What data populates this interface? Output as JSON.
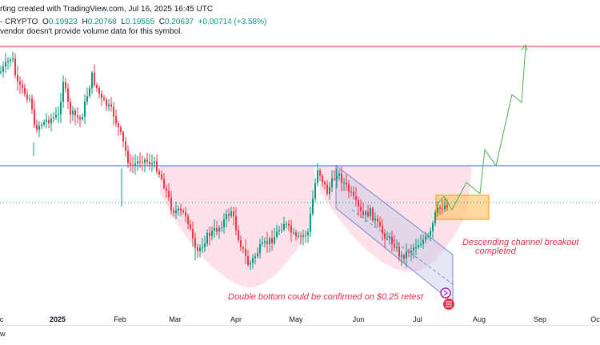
{
  "header": {
    "title_fragment": "rting created with TradingView.com, Jul 16, 2025 16:45 UTC",
    "symbol_fragment": "- CRYPTO",
    "ohlc": [
      {
        "label": "O",
        "value": "0.19923"
      },
      {
        "label": "H",
        "value": "0.20768"
      },
      {
        "label": "L",
        "value": "0.19555"
      },
      {
        "label": "C",
        "value": "0.20637"
      }
    ],
    "change": "+0.00714 (+3.58%)",
    "notice": "vendor doesn't provide volume data for this symbol."
  },
  "x_axis": {
    "labels": [
      {
        "text": "c",
        "bold": false
      },
      {
        "text": "2025",
        "bold": true
      },
      {
        "text": "Feb",
        "bold": false
      },
      {
        "text": "Mar",
        "bold": false
      },
      {
        "text": "Apr",
        "bold": false
      },
      {
        "text": "May",
        "bold": false
      },
      {
        "text": "Jun",
        "bold": false
      },
      {
        "text": "Jul",
        "bold": false
      },
      {
        "text": "Aug",
        "bold": false
      },
      {
        "text": "Sep",
        "bold": false
      },
      {
        "text": "Oc",
        "bold": false
      }
    ]
  },
  "annotations": {
    "channel": [
      "Descending channel breakout",
      "completed"
    ],
    "double_bottom": "Double bottom could be confirmed on $0.25 retest"
  },
  "footer": {
    "text": "w"
  },
  "colors": {
    "up": "#089981",
    "down": "#f23645",
    "resistance_top": "#f23645",
    "neckline": "#2962ff",
    "projection": "#4caf50",
    "annotation": "#e0324b",
    "target_box": "#ff9800"
  }
}
